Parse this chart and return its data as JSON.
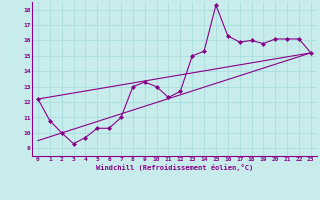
{
  "title": "",
  "xlabel": "Windchill (Refroidissement éolien,°C)",
  "background_color": "#c8ecec",
  "line_color": "#880088",
  "grid_color": "#aadddd",
  "xlim": [
    -0.5,
    23.5
  ],
  "ylim": [
    8.5,
    18.5
  ],
  "yticks": [
    9,
    10,
    11,
    12,
    13,
    14,
    15,
    16,
    17,
    18
  ],
  "xticks": [
    0,
    1,
    2,
    3,
    4,
    5,
    6,
    7,
    8,
    9,
    10,
    11,
    12,
    13,
    14,
    15,
    16,
    17,
    18,
    19,
    20,
    21,
    22,
    23
  ],
  "series1_x": [
    0,
    1,
    2,
    3,
    4,
    5,
    6,
    7,
    8,
    9,
    10,
    11,
    12,
    13,
    14,
    15,
    16,
    17,
    18,
    19,
    20,
    21,
    22,
    23
  ],
  "series1_y": [
    12.2,
    10.8,
    10.0,
    9.3,
    9.7,
    10.3,
    10.3,
    11.0,
    13.0,
    13.3,
    13.0,
    12.3,
    12.7,
    15.0,
    15.3,
    18.3,
    16.3,
    15.9,
    16.0,
    15.8,
    16.1,
    16.1,
    16.1,
    15.2
  ],
  "trend1_x": [
    0,
    23
  ],
  "trend1_y": [
    9.5,
    15.2
  ],
  "trend2_x": [
    0,
    23
  ],
  "trend2_y": [
    12.2,
    15.2
  ]
}
